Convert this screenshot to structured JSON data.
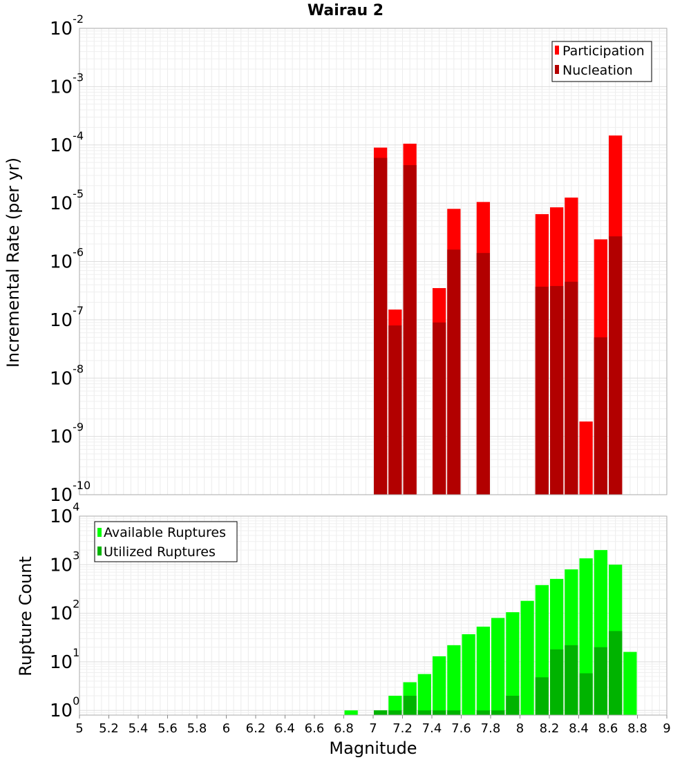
{
  "chart_data": [
    {
      "type": "bar",
      "title": "Wairau 2",
      "xlabel": "",
      "ylabel": "Incremental Rate (per yr)",
      "xlim": [
        5,
        9
      ],
      "ylim": [
        1e-10,
        0.01
      ],
      "yscale": "log",
      "y_tick_labels": [
        {
          "base": "10",
          "exp": "-10"
        },
        {
          "base": "10",
          "exp": "-9"
        },
        {
          "base": "10",
          "exp": "-8"
        },
        {
          "base": "10",
          "exp": "-7"
        },
        {
          "base": "10",
          "exp": "-6"
        },
        {
          "base": "10",
          "exp": "-5"
        },
        {
          "base": "10",
          "exp": "-4"
        },
        {
          "base": "10",
          "exp": "-3"
        },
        {
          "base": "10",
          "exp": "-2"
        }
      ],
      "grid": true,
      "legend_position": "top-right",
      "series": [
        {
          "name": "Participation",
          "color": "#ff0000",
          "x": [
            7.05,
            7.15,
            7.25,
            7.45,
            7.55,
            7.75,
            8.15,
            8.25,
            8.35,
            8.45,
            8.55,
            8.65
          ],
          "values": [
            9e-05,
            1.5e-07,
            0.000105,
            3.5e-07,
            8e-06,
            1.05e-05,
            6.5e-06,
            8.5e-06,
            1.25e-05,
            1.8e-09,
            2.4e-06,
            0.000145
          ]
        },
        {
          "name": "Nucleation",
          "color": "#b20000",
          "x": [
            7.05,
            7.15,
            7.25,
            7.45,
            7.55,
            7.75,
            8.15,
            8.25,
            8.35,
            8.55,
            8.65
          ],
          "values": [
            6e-05,
            8e-08,
            4.5e-05,
            9e-08,
            1.6e-06,
            1.4e-06,
            3.7e-07,
            3.8e-07,
            4.5e-07,
            5e-08,
            2.7e-06
          ]
        }
      ]
    },
    {
      "type": "bar",
      "title": "",
      "xlabel": "Magnitude",
      "ylabel": "Rupture Count",
      "xlim": [
        5,
        9
      ],
      "ylim": [
        0.8,
        10000
      ],
      "yscale": "log",
      "x_tick_labels": [
        "5",
        "5.2",
        "5.4",
        "5.6",
        "5.8",
        "6",
        "6.2",
        "6.4",
        "6.6",
        "6.8",
        "7",
        "7.2",
        "7.4",
        "7.6",
        "7.8",
        "8",
        "8.2",
        "8.4",
        "8.6",
        "8.8",
        "9"
      ],
      "y_tick_labels": [
        {
          "base": "10",
          "exp": "0"
        },
        {
          "base": "10",
          "exp": "1"
        },
        {
          "base": "10",
          "exp": "2"
        },
        {
          "base": "10",
          "exp": "3"
        },
        {
          "base": "10",
          "exp": "4"
        }
      ],
      "grid": true,
      "legend_position": "top-left",
      "series": [
        {
          "name": "Available Ruptures",
          "color": "#00ff00",
          "x": [
            6.85,
            7.05,
            7.15,
            7.25,
            7.35,
            7.45,
            7.55,
            7.65,
            7.75,
            7.85,
            7.95,
            8.05,
            8.15,
            8.25,
            8.35,
            8.45,
            8.55,
            8.65,
            8.75
          ],
          "values": [
            1,
            1,
            2,
            3.8,
            5.6,
            13,
            22,
            37,
            53,
            80,
            105,
            180,
            380,
            510,
            800,
            1350,
            2000,
            1000,
            16
          ]
        },
        {
          "name": "Utilized Ruptures",
          "color": "#00b300",
          "x": [
            7.05,
            7.15,
            7.25,
            7.35,
            7.45,
            7.55,
            7.75,
            7.85,
            7.95,
            8.15,
            8.25,
            8.35,
            8.45,
            8.55,
            8.65
          ],
          "values": [
            1,
            1,
            2,
            1,
            1,
            1,
            1,
            1,
            2,
            4.8,
            18,
            22,
            5.8,
            20,
            43
          ]
        }
      ]
    }
  ]
}
